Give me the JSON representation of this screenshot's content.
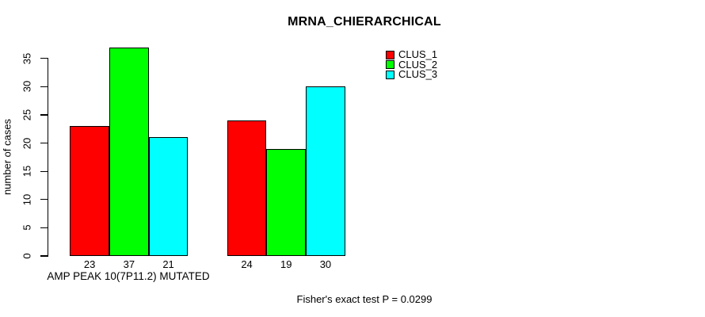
{
  "chart_data": {
    "type": "bar",
    "title": "MRNA_CHIERARCHICAL",
    "ylabel": "number of cases",
    "xlabel": "",
    "categories": [
      "AMP PEAK 10(7P11.2) MUTATED",
      ""
    ],
    "series": [
      {
        "name": "CLUS_1",
        "color": "#ff0000",
        "values": [
          23,
          24
        ]
      },
      {
        "name": "CLUS_2",
        "color": "#00ff00",
        "values": [
          37,
          19
        ]
      },
      {
        "name": "CLUS_3",
        "color": "#00ffff",
        "values": [
          21,
          30
        ]
      }
    ],
    "yticks": [
      0,
      5,
      10,
      15,
      20,
      25,
      30,
      35
    ],
    "ylim": [
      0,
      37
    ],
    "grid": false,
    "legend_position": "top-right",
    "bar_value_labels_shown": true,
    "annotation": "Fisher's exact test P = 0.0299"
  }
}
